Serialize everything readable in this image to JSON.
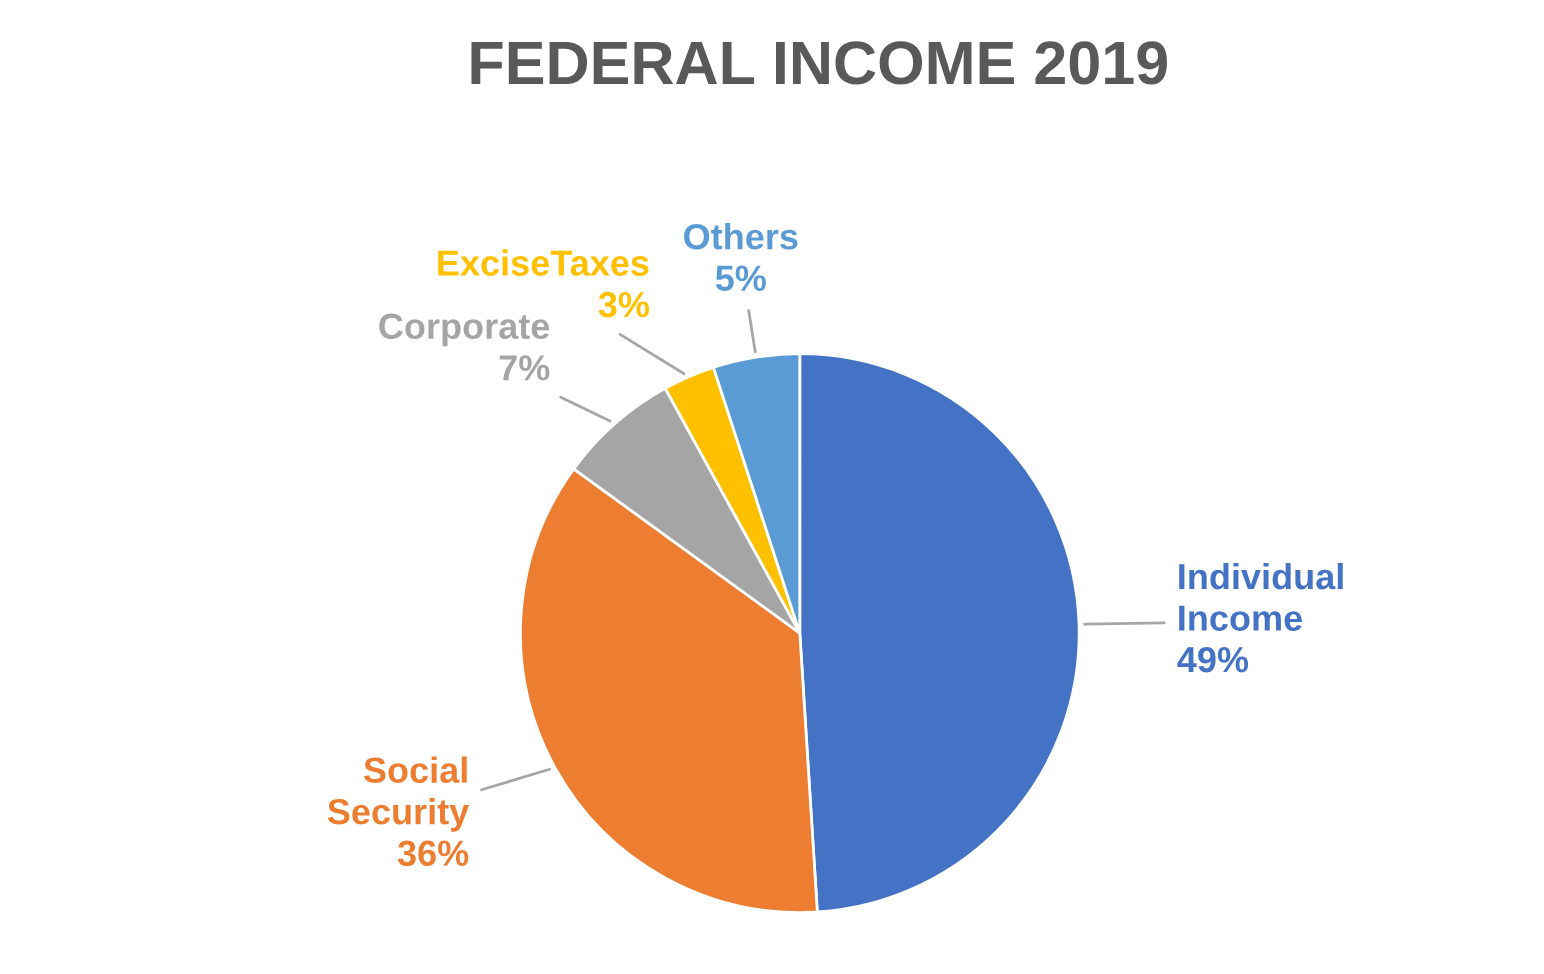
{
  "chart_data": {
    "type": "pie",
    "title": "FEDERAL INCOME 2019",
    "categories": [
      "Individual Income",
      "Social Security",
      "Corporate",
      "ExciseTaxes",
      "Others"
    ],
    "values": [
      49,
      36,
      7,
      3,
      5
    ],
    "value_labels": [
      "49%",
      "36%",
      "7%",
      "3%",
      "5%"
    ],
    "colors": [
      "#4472c4",
      "#ed7d31",
      "#a5a5a5",
      "#ffc000",
      "#5b9bd5"
    ],
    "legend": false
  }
}
